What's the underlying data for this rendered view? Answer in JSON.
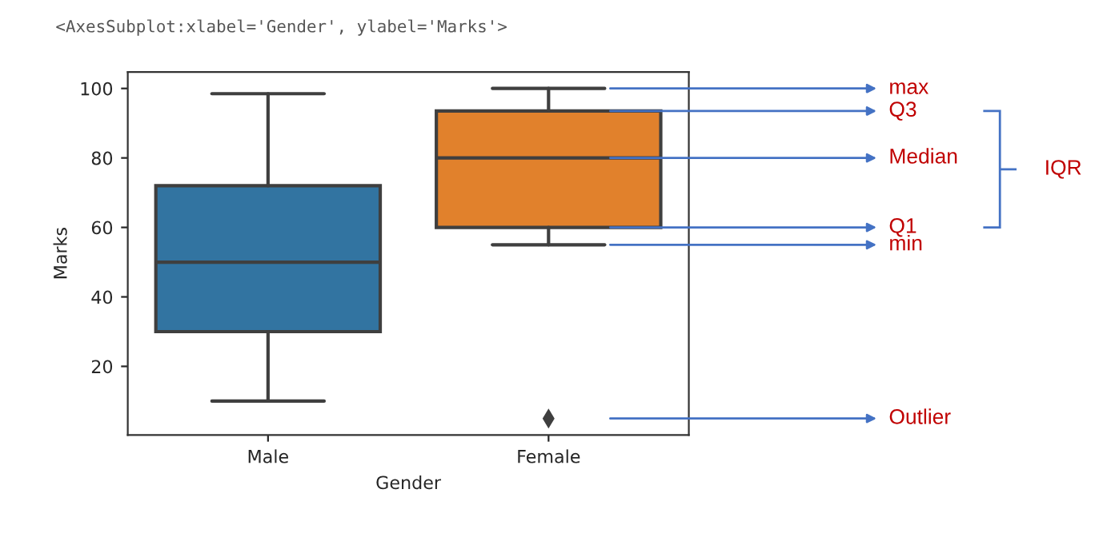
{
  "chart_data": {
    "type": "box",
    "xlabel": "Gender",
    "ylabel": "Marks",
    "categories": [
      "Male",
      "Female"
    ],
    "boxes": [
      {
        "low": 10,
        "q1": 30,
        "median": 50,
        "q3": 72,
        "high": 98.5
      },
      {
        "low": 55,
        "q1": 60,
        "median": 80,
        "q3": 93.5,
        "high": 100,
        "outliers": [
          5
        ]
      }
    ],
    "colors": [
      "#3274a1",
      "#e1812c"
    ],
    "ylim": [
      0.25,
      104.75
    ],
    "yticks": [
      20,
      40,
      60,
      80,
      100
    ],
    "grid": false,
    "legend": false,
    "annotations": [
      "<AxesSubplot:xlabel='Gender', ylabel='Marks'>",
      "max",
      "Q3",
      "Median",
      "Q1",
      "min",
      "Outlier",
      "IQR"
    ]
  }
}
